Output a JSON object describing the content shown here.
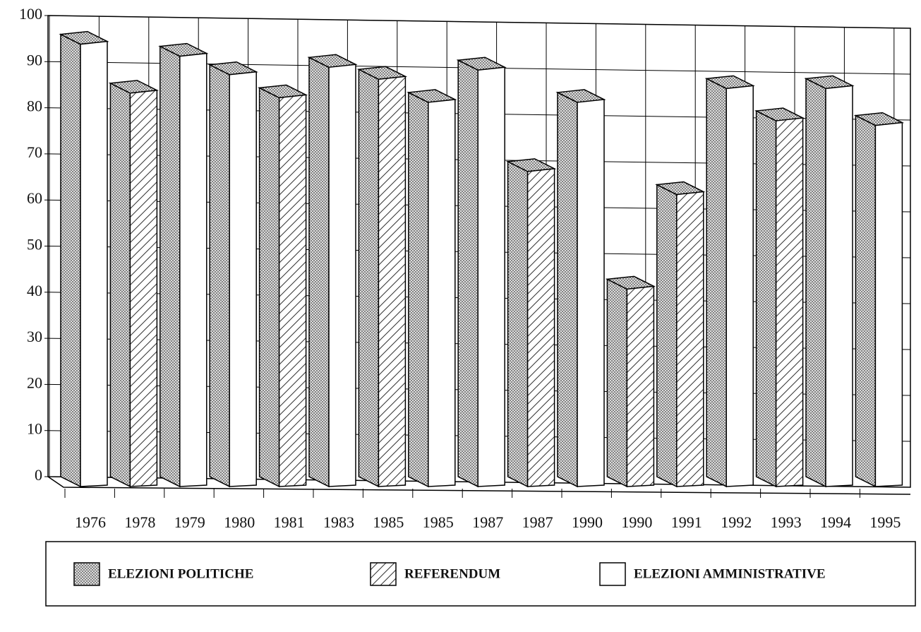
{
  "chart_data": {
    "type": "bar3d",
    "categories": [
      "1976",
      "1978",
      "1979",
      "1980",
      "1981",
      "1983",
      "1985",
      "1985",
      "1987",
      "1987",
      "1990",
      "1990",
      "1991",
      "1992",
      "1993",
      "1994",
      "1995"
    ],
    "series": [
      {
        "name": "ELEZIONI POLITICHE",
        "pattern": "dots",
        "values": [
          94.6,
          null,
          92,
          null,
          null,
          89.6,
          null,
          null,
          89,
          null,
          null,
          null,
          null,
          85,
          null,
          85,
          null
        ]
      },
      {
        "name": "REFERENDUM",
        "pattern": "hatch",
        "values": [
          null,
          84,
          null,
          null,
          83,
          null,
          87,
          null,
          null,
          67,
          null,
          41.5,
          62,
          null,
          78,
          null,
          null
        ]
      },
      {
        "name": "ELEZIONI AMMINISTRATIVE",
        "pattern": "white",
        "values": [
          null,
          null,
          null,
          88,
          null,
          null,
          null,
          82,
          null,
          null,
          82,
          null,
          null,
          null,
          null,
          null,
          77
        ]
      }
    ],
    "ylim": [
      0,
      100
    ],
    "yticks": [
      0,
      10,
      20,
      30,
      40,
      50,
      60,
      70,
      80,
      90,
      100
    ],
    "grid": true
  }
}
